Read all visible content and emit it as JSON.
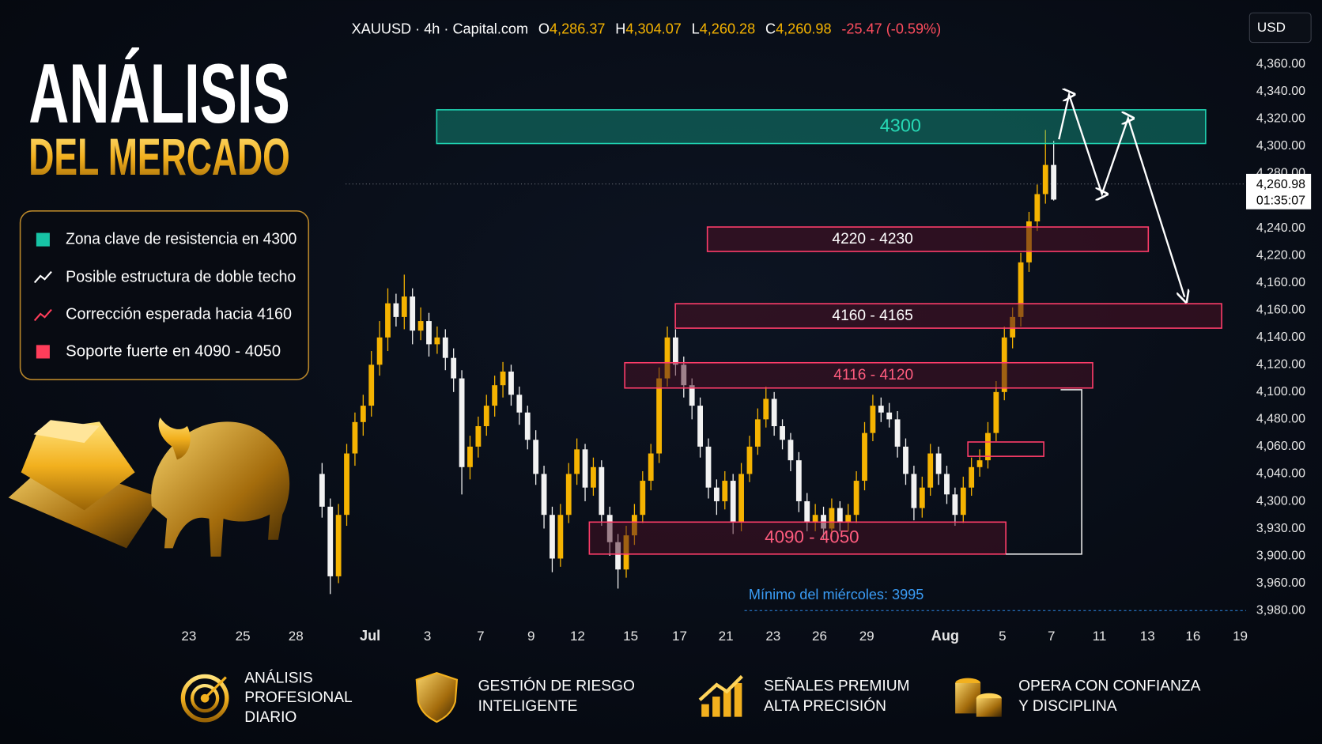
{
  "header": {
    "symbol": "XAUUSD · 4h · Capital.com",
    "ohlc": [
      {
        "key": "O",
        "value": "4,286.37"
      },
      {
        "key": "H",
        "value": "4,304.07"
      },
      {
        "key": "L",
        "value": "4,260.28"
      },
      {
        "key": "C",
        "value": "4,260.98"
      }
    ],
    "change": "-25.47 (-0.59%)"
  },
  "title": {
    "line1": "ANÁLISIS",
    "line2": "DEL MERCADO"
  },
  "legend": [
    "Zona clave de resistencia en 4300",
    "Posible estructura de doble techo",
    "Corrección esperada hacia 4160",
    "Soporte fuerte en 4090 - 4050"
  ],
  "chart_data": {
    "type": "candlestick",
    "candles": [
      [
        4060,
        4068,
        4028,
        4036
      ],
      [
        4036,
        4042,
        3972,
        3985
      ],
      [
        3985,
        4038,
        3980,
        4030
      ],
      [
        4030,
        4082,
        4022,
        4075
      ],
      [
        4075,
        4105,
        4066,
        4098
      ],
      [
        4098,
        4118,
        4088,
        4110
      ],
      [
        4110,
        4150,
        4102,
        4140
      ],
      [
        4140,
        4172,
        4132,
        4160
      ],
      [
        4160,
        4196,
        4150,
        4185
      ],
      [
        4185,
        4192,
        4168,
        4175
      ],
      [
        4175,
        4206,
        4166,
        4190
      ],
      [
        4190,
        4196,
        4155,
        4165
      ],
      [
        4165,
        4182,
        4158,
        4172
      ],
      [
        4172,
        4178,
        4146,
        4155
      ],
      [
        4155,
        4168,
        4148,
        4160
      ],
      [
        4160,
        4166,
        4136,
        4145
      ],
      [
        4145,
        4152,
        4120,
        4130
      ],
      [
        4130,
        4136,
        4045,
        4065
      ],
      [
        4065,
        4088,
        4056,
        4080
      ],
      [
        4080,
        4102,
        4072,
        4095
      ],
      [
        4095,
        4118,
        4088,
        4110
      ],
      [
        4110,
        4132,
        4102,
        4125
      ],
      [
        4125,
        4142,
        4116,
        4135
      ],
      [
        4135,
        4140,
        4110,
        4118
      ],
      [
        4118,
        4124,
        4096,
        4105
      ],
      [
        4105,
        4110,
        4078,
        4085
      ],
      [
        4085,
        4092,
        4052,
        4060
      ],
      [
        4060,
        4066,
        4020,
        4030
      ],
      [
        4030,
        4036,
        3988,
        3998
      ],
      [
        3998,
        4038,
        3992,
        4030
      ],
      [
        4030,
        4068,
        4024,
        4060
      ],
      [
        4060,
        4086,
        4052,
        4078
      ],
      [
        4078,
        4082,
        4040,
        4050
      ],
      [
        4050,
        4072,
        4044,
        4065
      ],
      [
        4065,
        4070,
        4022,
        4030
      ],
      [
        4030,
        4036,
        4000,
        4010
      ],
      [
        4010,
        4016,
        3976,
        3990
      ],
      [
        3990,
        4022,
        3984,
        4015
      ],
      [
        4015,
        4038,
        4008,
        4030
      ],
      [
        4030,
        4062,
        4024,
        4055
      ],
      [
        4055,
        4082,
        4048,
        4075
      ],
      [
        4075,
        4138,
        4068,
        4130
      ],
      [
        4130,
        4168,
        4124,
        4160
      ],
      [
        4160,
        4166,
        4132,
        4140
      ],
      [
        4140,
        4146,
        4116,
        4125
      ],
      [
        4125,
        4130,
        4100,
        4110
      ],
      [
        4110,
        4116,
        4072,
        4080
      ],
      [
        4080,
        4086,
        4042,
        4050
      ],
      [
        4050,
        4056,
        4030,
        4040
      ],
      [
        4040,
        4062,
        4034,
        4055
      ],
      [
        4055,
        4060,
        4016,
        4025
      ],
      [
        4025,
        4068,
        4018,
        4060
      ],
      [
        4060,
        4088,
        4054,
        4080
      ],
      [
        4080,
        4108,
        4074,
        4100
      ],
      [
        4100,
        4124,
        4094,
        4115
      ],
      [
        4115,
        4120,
        4088,
        4095
      ],
      [
        4095,
        4100,
        4078,
        4085
      ],
      [
        4085,
        4090,
        4062,
        4070
      ],
      [
        4070,
        4076,
        4032,
        4040
      ],
      [
        4040,
        4046,
        4018,
        4025
      ],
      [
        4025,
        4038,
        4018,
        4030
      ],
      [
        4030,
        4036,
        4012,
        4020
      ],
      [
        4020,
        4042,
        4014,
        4035
      ],
      [
        4035,
        4040,
        4018,
        4025
      ],
      [
        4025,
        4038,
        4018,
        4030
      ],
      [
        4030,
        4062,
        4024,
        4055
      ],
      [
        4055,
        4098,
        4048,
        4090
      ],
      [
        4090,
        4118,
        4084,
        4110
      ],
      [
        4110,
        4116,
        4098,
        4105
      ],
      [
        4105,
        4112,
        4094,
        4100
      ],
      [
        4100,
        4106,
        4072,
        4080
      ],
      [
        4080,
        4086,
        4052,
        4060
      ],
      [
        4060,
        4066,
        4026,
        4035
      ],
      [
        4035,
        4058,
        4028,
        4050
      ],
      [
        4050,
        4082,
        4044,
        4075
      ],
      [
        4075,
        4080,
        4052,
        4060
      ],
      [
        4060,
        4066,
        4038,
        4045
      ],
      [
        4045,
        4050,
        4022,
        4030
      ],
      [
        4030,
        4058,
        4024,
        4050
      ],
      [
        4050,
        4072,
        4044,
        4065
      ],
      [
        4065,
        4078,
        4058,
        4070
      ],
      [
        4070,
        4098,
        4064,
        4090
      ],
      [
        4090,
        4128,
        4084,
        4120
      ],
      [
        4120,
        4168,
        4114,
        4160
      ],
      [
        4160,
        4182,
        4152,
        4175
      ],
      [
        4175,
        4222,
        4168,
        4215
      ],
      [
        4215,
        4252,
        4208,
        4245
      ],
      [
        4245,
        4272,
        4238,
        4265
      ],
      [
        4265,
        4312,
        4258,
        4286.37
      ],
      [
        4286.37,
        4304.07,
        4260.28,
        4260.98
      ]
    ],
    "ylim": [
      3950,
      4370
    ],
    "up_color": "#f5b301",
    "down_color": "#f2f2f2",
    "currency": "USD",
    "price_labels": [
      "4,360.00",
      "4,340.00",
      "4,320.00",
      "4,300.00",
      "4,280.00",
      "4,240.00",
      "4,220.00",
      "4,160.00",
      "4,160.00",
      "4,140.00",
      "4,120.00",
      "4,100.00",
      "4,480.00",
      "4,060.00",
      "4,040.00",
      "4,300.00",
      "3,930.00",
      "3,900.00",
      "3,960.00",
      "3,980.00"
    ],
    "last_price": "4,260.98",
    "countdown": "01:35:07",
    "x_labels": [
      "23",
      "25",
      "28",
      "Jul",
      "3",
      "7",
      "9",
      "12",
      "15",
      "17",
      "21",
      "23",
      "26",
      "29",
      "Aug",
      "5",
      "7",
      "11",
      "13",
      "16",
      "19"
    ],
    "zones": [
      "4300",
      "4220 - 4230",
      "4160 - 4165",
      "4116 - 4120",
      "4090 - 4050"
    ],
    "annotation": "Mínimo del miércoles: 3995"
  },
  "footer": [
    [
      "ANÁLISIS",
      "PROFESIONAL",
      "DIARIO"
    ],
    [
      "GESTIÓN DE RIESGO",
      "INTELIGENTE"
    ],
    [
      "SEÑALES PREMIUM",
      "ALTA PRECISIÓN"
    ],
    [
      "OPERA CON CONFIANZA",
      "Y DISCIPLINA"
    ]
  ]
}
